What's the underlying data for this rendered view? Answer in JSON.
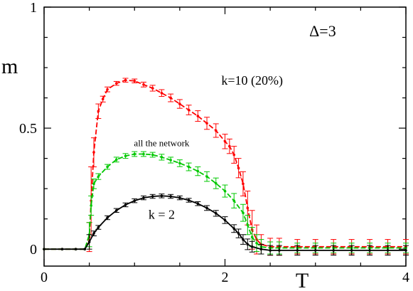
{
  "chart_data": {
    "type": "line",
    "xlabel": "T",
    "ylabel": "m",
    "xlim": [
      0,
      4
    ],
    "ylim": [
      -0.07,
      1
    ],
    "x_ticks": [
      0,
      2,
      4
    ],
    "x_tick_labels": [
      "0",
      "2",
      "4"
    ],
    "y_ticks": [
      0,
      0.5,
      1
    ],
    "y_tick_labels": [
      "0",
      "0.5",
      "1"
    ],
    "grid": false,
    "legend": "none",
    "annotations": [
      {
        "text": "Δ=3",
        "x": 3.08,
        "y": 0.88,
        "size": "large"
      },
      {
        "text": "k=10 (20%)",
        "x": 2.3,
        "y": 0.68,
        "size": "medium"
      },
      {
        "text": "all the network",
        "x": 1.3,
        "y": 0.425,
        "size": "small"
      },
      {
        "text": "k = 2",
        "x": 1.3,
        "y": 0.125,
        "size": "medium"
      }
    ],
    "series": [
      {
        "color": "#ff0000",
        "x": [
          0.0,
          0.2,
          0.35,
          0.45,
          0.5,
          0.52,
          0.55,
          0.6,
          0.65,
          0.7,
          0.8,
          0.9,
          1.0,
          1.1,
          1.2,
          1.3,
          1.4,
          1.5,
          1.6,
          1.7,
          1.8,
          1.9,
          2.0,
          2.05,
          2.1,
          2.15,
          2.2,
          2.25,
          2.3,
          2.35,
          2.4,
          2.5,
          2.6,
          2.8,
          3.0,
          3.2,
          3.4,
          3.6,
          3.8,
          4.0
        ],
        "y": [
          0.0,
          0.0,
          0.0,
          0.0,
          0.05,
          0.2,
          0.4,
          0.57,
          0.62,
          0.66,
          0.685,
          0.698,
          0.695,
          0.68,
          0.665,
          0.645,
          0.625,
          0.6,
          0.575,
          0.55,
          0.52,
          0.49,
          0.445,
          0.425,
          0.39,
          0.335,
          0.27,
          0.17,
          0.08,
          0.04,
          0.02,
          0.01,
          0.01,
          0.01,
          0.01,
          0.01,
          0.01,
          0.01,
          0.01,
          0.01
        ],
        "err": [
          0.0,
          0.0,
          0.0,
          0.0,
          0.06,
          0.14,
          0.06,
          0.03,
          0.012,
          0.01,
          0.008,
          0.008,
          0.008,
          0.01,
          0.012,
          0.014,
          0.016,
          0.018,
          0.02,
          0.022,
          0.025,
          0.028,
          0.03,
          0.03,
          0.035,
          0.04,
          0.05,
          0.07,
          0.08,
          0.06,
          0.04,
          0.035,
          0.035,
          0.03,
          0.03,
          0.03,
          0.03,
          0.03,
          0.03,
          0.03
        ]
      },
      {
        "color": "#00c800",
        "x": [
          0.0,
          0.2,
          0.35,
          0.45,
          0.5,
          0.52,
          0.55,
          0.6,
          0.7,
          0.8,
          0.9,
          1.0,
          1.1,
          1.2,
          1.3,
          1.4,
          1.5,
          1.6,
          1.7,
          1.8,
          1.9,
          2.0,
          2.1,
          2.2,
          2.25,
          2.3,
          2.35,
          2.4,
          2.5,
          2.6,
          2.8,
          3.0,
          3.2,
          3.4,
          3.6,
          3.8,
          4.0
        ],
        "y": [
          0.0,
          0.0,
          0.0,
          0.0,
          0.06,
          0.18,
          0.27,
          0.3,
          0.34,
          0.37,
          0.385,
          0.393,
          0.393,
          0.39,
          0.38,
          0.368,
          0.355,
          0.34,
          0.322,
          0.3,
          0.272,
          0.24,
          0.2,
          0.15,
          0.1,
          0.05,
          0.025,
          0.01,
          0.005,
          0.005,
          0.005,
          0.005,
          0.005,
          0.005,
          0.005,
          0.005,
          0.005
        ],
        "err": [
          0.0,
          0.0,
          0.0,
          0.0,
          0.05,
          0.04,
          0.02,
          0.012,
          0.01,
          0.01,
          0.01,
          0.01,
          0.01,
          0.01,
          0.012,
          0.012,
          0.014,
          0.016,
          0.018,
          0.02,
          0.022,
          0.025,
          0.03,
          0.035,
          0.04,
          0.04,
          0.035,
          0.03,
          0.025,
          0.025,
          0.02,
          0.02,
          0.02,
          0.02,
          0.02,
          0.02,
          0.02
        ]
      },
      {
        "color": "#000000",
        "x": [
          0.0,
          0.2,
          0.35,
          0.45,
          0.5,
          0.55,
          0.6,
          0.7,
          0.8,
          0.9,
          1.0,
          1.1,
          1.2,
          1.3,
          1.4,
          1.5,
          1.6,
          1.7,
          1.8,
          1.9,
          2.0,
          2.1,
          2.15,
          2.2,
          2.25,
          2.3,
          2.4,
          2.5,
          2.6,
          2.8,
          3.0,
          3.2,
          3.4,
          3.6,
          3.8,
          4.0
        ],
        "y": [
          0.0,
          0.0,
          0.0,
          0.0,
          0.03,
          0.065,
          0.09,
          0.13,
          0.16,
          0.183,
          0.2,
          0.212,
          0.218,
          0.22,
          0.218,
          0.212,
          0.202,
          0.188,
          0.17,
          0.148,
          0.12,
          0.085,
          0.065,
          0.04,
          0.02,
          0.01,
          0.0,
          -0.005,
          -0.005,
          -0.005,
          -0.005,
          -0.005,
          -0.005,
          -0.005,
          -0.005,
          -0.005
        ],
        "err": [
          0.0,
          0.0,
          0.0,
          0.0,
          0.03,
          0.01,
          0.008,
          0.008,
          0.008,
          0.008,
          0.008,
          0.008,
          0.008,
          0.008,
          0.008,
          0.008,
          0.008,
          0.008,
          0.01,
          0.012,
          0.014,
          0.016,
          0.018,
          0.02,
          0.022,
          0.022,
          0.02,
          0.02,
          0.02,
          0.02,
          0.02,
          0.02,
          0.02,
          0.02,
          0.02,
          0.02
        ]
      }
    ]
  }
}
